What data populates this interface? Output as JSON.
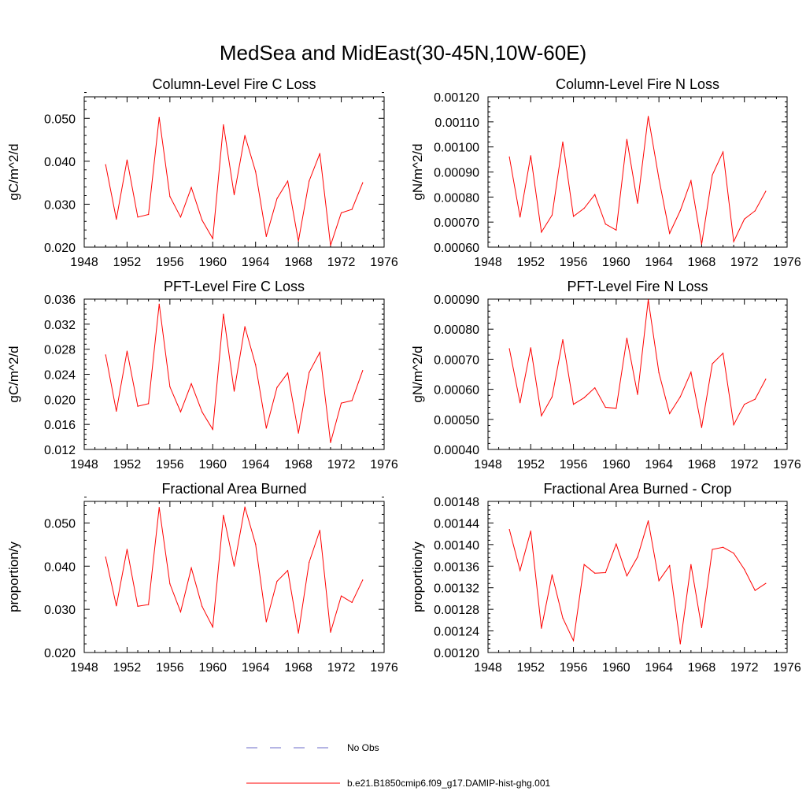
{
  "figure": {
    "title": "MedSea and MidEast(30-45N,10W-60E)"
  },
  "legend": {
    "obs_label": "No Obs",
    "obs_color": "#6b6bc8",
    "model_label": "b.e21.B1850cmip6.f09_g17.DAMIP-hist-ghg.001",
    "model_color": "#ff0000"
  },
  "chart_data": [
    {
      "type": "line",
      "title": "Column-Level Fire C Loss",
      "ylabel": "gC/m^2/d",
      "xlim": [
        1948,
        1976
      ],
      "ylim": [
        0.02,
        0.055
      ],
      "xticks": [
        "1948",
        "1952",
        "1956",
        "1960",
        "1964",
        "1968",
        "1972",
        "1976"
      ],
      "yticks": [
        "0.020",
        "0.030",
        "0.040",
        "0.050"
      ],
      "x": [
        1950,
        1951,
        1952,
        1953,
        1954,
        1955,
        1956,
        1957,
        1958,
        1959,
        1960,
        1961,
        1962,
        1963,
        1964,
        1965,
        1966,
        1967,
        1968,
        1969,
        1970,
        1971,
        1972,
        1973,
        1974
      ],
      "series": [
        {
          "name": "b.e21.B1850cmip6.f09_g17.DAMIP-hist-ghg.001",
          "values": [
            0.0392,
            0.0265,
            0.0403,
            0.027,
            0.0276,
            0.0502,
            0.0318,
            0.027,
            0.0339,
            0.0263,
            0.022,
            0.0485,
            0.0322,
            0.046,
            0.0376,
            0.0225,
            0.0313,
            0.0354,
            0.0214,
            0.0354,
            0.0418,
            0.0204,
            0.028,
            0.0288,
            0.035
          ]
        }
      ]
    },
    {
      "type": "line",
      "title": "Column-Level Fire N Loss",
      "ylabel": "gN/m^2/d",
      "xlim": [
        1948,
        1976
      ],
      "ylim": [
        0.0006,
        0.0012
      ],
      "xticks": [
        "1948",
        "1952",
        "1956",
        "1960",
        "1964",
        "1968",
        "1972",
        "1976"
      ],
      "yticks": [
        "0.00060",
        "0.00070",
        "0.00080",
        "0.00090",
        "0.00100",
        "0.00110",
        "0.00120"
      ],
      "x": [
        1950,
        1951,
        1952,
        1953,
        1954,
        1955,
        1956,
        1957,
        1958,
        1959,
        1960,
        1961,
        1962,
        1963,
        1964,
        1965,
        1966,
        1967,
        1968,
        1969,
        1970,
        1971,
        1972,
        1973,
        1974
      ],
      "series": [
        {
          "name": "b.e21.B1850cmip6.f09_g17.DAMIP-hist-ghg.001",
          "values": [
            0.00096,
            0.00072,
            0.000965,
            0.00066,
            0.000728,
            0.00102,
            0.000723,
            0.000755,
            0.00081,
            0.000692,
            0.000668,
            0.00103,
            0.000775,
            0.001122,
            0.000873,
            0.000655,
            0.000746,
            0.000865,
            0.000612,
            0.000888,
            0.00098,
            0.000622,
            0.000712,
            0.000745,
            0.000823
          ]
        }
      ]
    },
    {
      "type": "line",
      "title": "PFT-Level Fire C Loss",
      "ylabel": "gC/m^2/d",
      "xlim": [
        1948,
        1976
      ],
      "ylim": [
        0.012,
        0.036
      ],
      "xticks": [
        "1948",
        "1952",
        "1956",
        "1960",
        "1964",
        "1968",
        "1972",
        "1976"
      ],
      "yticks": [
        "0.012",
        "0.016",
        "0.020",
        "0.024",
        "0.028",
        "0.032",
        "0.036"
      ],
      "x": [
        1950,
        1951,
        1952,
        1953,
        1954,
        1955,
        1956,
        1957,
        1958,
        1959,
        1960,
        1961,
        1962,
        1963,
        1964,
        1965,
        1966,
        1967,
        1968,
        1969,
        1970,
        1971,
        1972,
        1973,
        1974
      ],
      "series": [
        {
          "name": "b.e21.B1850cmip6.f09_g17.DAMIP-hist-ghg.001",
          "values": [
            0.0271,
            0.0181,
            0.0277,
            0.0189,
            0.0193,
            0.0352,
            0.022,
            0.018,
            0.0225,
            0.018,
            0.0152,
            0.0336,
            0.0213,
            0.0316,
            0.0255,
            0.0154,
            0.0219,
            0.0242,
            0.0146,
            0.0243,
            0.0275,
            0.0131,
            0.0194,
            0.0198,
            0.0246
          ]
        }
      ]
    },
    {
      "type": "line",
      "title": "PFT-Level Fire N Loss",
      "ylabel": "gN/m^2/d",
      "xlim": [
        1948,
        1976
      ],
      "ylim": [
        0.0004,
        0.0009
      ],
      "xticks": [
        "1948",
        "1952",
        "1956",
        "1960",
        "1964",
        "1968",
        "1972",
        "1976"
      ],
      "yticks": [
        "0.00040",
        "0.00050",
        "0.00060",
        "0.00070",
        "0.00080",
        "0.00090"
      ],
      "x": [
        1950,
        1951,
        1952,
        1953,
        1954,
        1955,
        1956,
        1957,
        1958,
        1959,
        1960,
        1961,
        1962,
        1963,
        1964,
        1965,
        1966,
        1967,
        1968,
        1969,
        1970,
        1971,
        1972,
        1973,
        1974
      ],
      "series": [
        {
          "name": "b.e21.B1850cmip6.f09_g17.DAMIP-hist-ghg.001",
          "values": [
            0.000735,
            0.000555,
            0.000738,
            0.000512,
            0.000575,
            0.000765,
            0.00055,
            0.000572,
            0.000605,
            0.00054,
            0.000537,
            0.00077,
            0.000583,
            0.000898,
            0.000655,
            0.000519,
            0.000575,
            0.000657,
            0.000473,
            0.000685,
            0.00072,
            0.000482,
            0.00055,
            0.000567,
            0.000634
          ]
        }
      ]
    },
    {
      "type": "line",
      "title": "Fractional Area Burned",
      "ylabel": "proportion/y",
      "xlim": [
        1948,
        1976
      ],
      "ylim": [
        0.02,
        0.055
      ],
      "xticks": [
        "1948",
        "1952",
        "1956",
        "1960",
        "1964",
        "1968",
        "1972",
        "1976"
      ],
      "yticks": [
        "0.020",
        "0.030",
        "0.040",
        "0.050"
      ],
      "x": [
        1950,
        1951,
        1952,
        1953,
        1954,
        1955,
        1956,
        1957,
        1958,
        1959,
        1960,
        1961,
        1962,
        1963,
        1964,
        1965,
        1966,
        1967,
        1968,
        1969,
        1970,
        1971,
        1972,
        1973,
        1974
      ],
      "series": [
        {
          "name": "b.e21.B1850cmip6.f09_g17.DAMIP-hist-ghg.001",
          "values": [
            0.0421,
            0.0308,
            0.0439,
            0.0307,
            0.0311,
            0.0536,
            0.0359,
            0.0294,
            0.0396,
            0.0307,
            0.0259,
            0.0518,
            0.04,
            0.0537,
            0.0451,
            0.0271,
            0.0365,
            0.039,
            0.0245,
            0.0409,
            0.0483,
            0.0247,
            0.0331,
            0.0316,
            0.0368
          ]
        }
      ]
    },
    {
      "type": "line",
      "title": "Fractional Area Burned - Crop",
      "ylabel": "proportion/y",
      "xlim": [
        1948,
        1976
      ],
      "ylim": [
        0.0012,
        0.00148
      ],
      "xticks": [
        "1948",
        "1952",
        "1956",
        "1960",
        "1964",
        "1968",
        "1972",
        "1976"
      ],
      "yticks": [
        "0.00120",
        "0.00124",
        "0.00128",
        "0.00132",
        "0.00136",
        "0.00140",
        "0.00144",
        "0.00148"
      ],
      "x": [
        1950,
        1951,
        1952,
        1953,
        1954,
        1955,
        1956,
        1957,
        1958,
        1959,
        1960,
        1961,
        1962,
        1963,
        1964,
        1965,
        1966,
        1967,
        1968,
        1969,
        1970,
        1971,
        1972,
        1973,
        1974
      ],
      "series": [
        {
          "name": "b.e21.B1850cmip6.f09_g17.DAMIP-hist-ghg.001",
          "values": [
            0.001428,
            0.001352,
            0.001425,
            0.001245,
            0.001344,
            0.001264,
            0.001222,
            0.001363,
            0.001347,
            0.001348,
            0.001401,
            0.001342,
            0.001377,
            0.001444,
            0.001333,
            0.001361,
            0.001216,
            0.001363,
            0.001246,
            0.001391,
            0.001395,
            0.001384,
            0.001354,
            0.001315,
            0.001328
          ]
        }
      ]
    }
  ]
}
